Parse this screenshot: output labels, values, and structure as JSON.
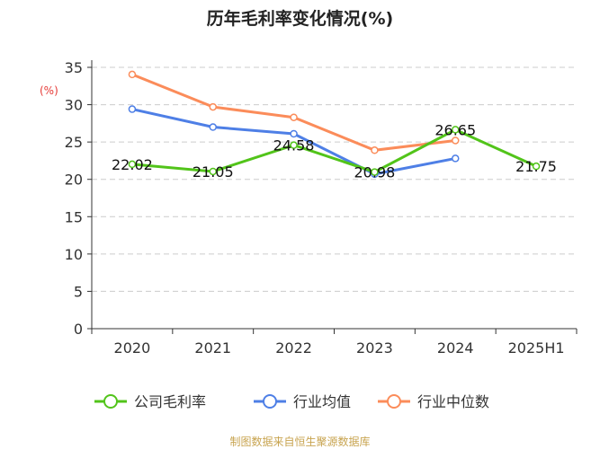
{
  "chart_data": {
    "type": "line",
    "title": "历年毛利率变化情况(%)",
    "ylabel": "(%)",
    "categories": [
      "2020",
      "2021",
      "2022",
      "2023",
      "2024",
      "2025H1"
    ],
    "ylim": [
      0,
      35
    ],
    "yticks": [
      0,
      5,
      10,
      15,
      20,
      25,
      30,
      35
    ],
    "grid": true,
    "legend_position": "bottom",
    "series": [
      {
        "name": "公司毛利率",
        "color": "#52c41a",
        "values": [
          22.02,
          21.05,
          24.58,
          20.98,
          26.65,
          21.75
        ],
        "labels": [
          "22.02",
          "21.05",
          "24.58",
          "20.98",
          "26.65",
          "21.75"
        ]
      },
      {
        "name": "行业均值",
        "color": "#4e7fe6",
        "values": [
          29.4,
          27.0,
          26.1,
          20.7,
          22.8,
          null
        ]
      },
      {
        "name": "行业中位数",
        "color": "#fb8c5a",
        "values": [
          34.05,
          29.7,
          28.3,
          23.9,
          25.2,
          null
        ]
      }
    ]
  },
  "source": "制图数据来自恒生聚源数据库"
}
